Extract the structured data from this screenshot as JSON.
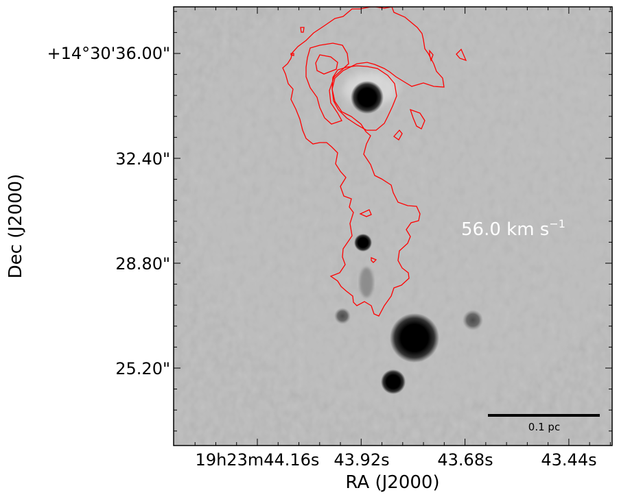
{
  "chart_data": {
    "type": "contour",
    "background": "grayscale intensity image",
    "xlabel": "RA (J2000)",
    "ylabel": "Dec (J2000)",
    "x_tick_labels": [
      "19h23m44.16s",
      "43.92s",
      "43.68s",
      "43.44s"
    ],
    "y_tick_labels": [
      "+14°30'36.00\"",
      "32.40\"",
      "28.80\"",
      "25.20\""
    ],
    "annotation": "56.0 km s",
    "annotation_superscript": "−1",
    "scalebar_label": "0.1 pc",
    "contour_color": "#ff0000",
    "sources": [
      {
        "name": "upper-bright-source"
      },
      {
        "name": "middle-source"
      },
      {
        "name": "lower-bright-source"
      },
      {
        "name": "bottom-source"
      },
      {
        "name": "faint-left-source"
      },
      {
        "name": "faint-right-source"
      }
    ]
  }
}
